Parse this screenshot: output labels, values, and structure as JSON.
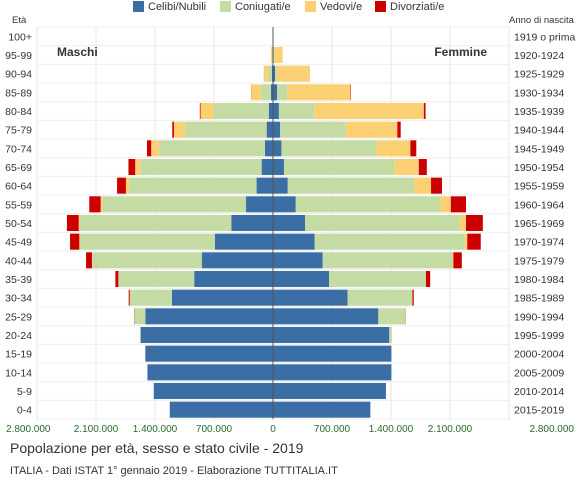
{
  "chart_data": {
    "type": "bar",
    "title": "Popolazione per età, sesso e stato civile - 2019",
    "subtitle": "ITALIA - Dati ISTAT 1° gennaio 2019 - Elaborazione TUTTITALIA.IT",
    "left_axis_header": "Età",
    "right_axis_header": "Anno di nascita",
    "left_side_label": "Maschi",
    "right_side_label": "Femmine",
    "xlim": [
      -2800000,
      2800000
    ],
    "x_ticks": [
      "2.800.000",
      "2.100.000",
      "1.400.000",
      "700.000",
      "0",
      "700.000",
      "1.400.000",
      "2.100.000",
      "2.800.000"
    ],
    "age_groups": [
      "100+",
      "95-99",
      "90-94",
      "85-89",
      "80-84",
      "75-79",
      "70-74",
      "65-69",
      "60-64",
      "55-59",
      "50-54",
      "45-49",
      "40-44",
      "35-39",
      "30-34",
      "25-29",
      "20-24",
      "15-19",
      "10-14",
      "5-9",
      "0-4"
    ],
    "birth_years": [
      "1919 o prima",
      "1920-1924",
      "1925-1929",
      "1930-1934",
      "1935-1939",
      "1940-1944",
      "1945-1949",
      "1950-1954",
      "1955-1959",
      "1960-1964",
      "1965-1969",
      "1970-1974",
      "1975-1979",
      "1980-1984",
      "1985-1989",
      "1990-1994",
      "1995-1999",
      "2000-2004",
      "2005-2009",
      "2010-2014",
      "2015-2019"
    ],
    "series": [
      {
        "name": "Celibi/Nubili",
        "color": "#3b6ea5",
        "male": [
          2000,
          6000,
          12000,
          25000,
          50000,
          75000,
          95000,
          135000,
          195000,
          320000,
          495000,
          690000,
          845000,
          935000,
          1200000,
          1515000,
          1570000,
          1515000,
          1490000,
          1415000,
          1225000
        ],
        "female": [
          1000,
          8000,
          25000,
          50000,
          70000,
          85000,
          100000,
          130000,
          175000,
          270000,
          380000,
          495000,
          590000,
          665000,
          885000,
          1250000,
          1380000,
          1405000,
          1405000,
          1340000,
          1155000
        ]
      },
      {
        "name": "Coniugati/e",
        "color": "#c5dba4",
        "male": [
          0,
          7000,
          50000,
          120000,
          650000,
          970000,
          1260000,
          1440000,
          1510000,
          1705000,
          1795000,
          1600000,
          1300000,
          900000,
          500000,
          130000,
          10000,
          0,
          0,
          0,
          0
        ],
        "female": [
          0,
          5000,
          20000,
          120000,
          420000,
          780000,
          1130000,
          1310000,
          1500000,
          1720000,
          1840000,
          1780000,
          1540000,
          1150000,
          770000,
          320000,
          30000,
          0,
          0,
          0,
          0
        ]
      },
      {
        "name": "Vedovi/e",
        "color": "#fbd072",
        "male": [
          1000,
          12000,
          45000,
          110000,
          160000,
          130000,
          90000,
          60000,
          40000,
          20000,
          15000,
          8000,
          3000,
          0,
          0,
          0,
          0,
          0,
          0,
          0,
          0
        ],
        "female": [
          5000,
          100000,
          390000,
          750000,
          1300000,
          610000,
          400000,
          290000,
          200000,
          120000,
          70000,
          30000,
          10000,
          0,
          0,
          0,
          0,
          0,
          0,
          0,
          0
        ]
      },
      {
        "name": "Divorziati/e",
        "color": "#cc0000",
        "male": [
          0,
          0,
          1000,
          2000,
          8000,
          20000,
          50000,
          80000,
          105000,
          135000,
          140000,
          110000,
          70000,
          35000,
          12000,
          3000,
          0,
          0,
          0,
          0,
          0
        ],
        "female": [
          0,
          0,
          1000,
          5000,
          20000,
          40000,
          70000,
          95000,
          130000,
          180000,
          200000,
          160000,
          100000,
          50000,
          15000,
          3000,
          0,
          0,
          0,
          0,
          0
        ]
      }
    ]
  }
}
